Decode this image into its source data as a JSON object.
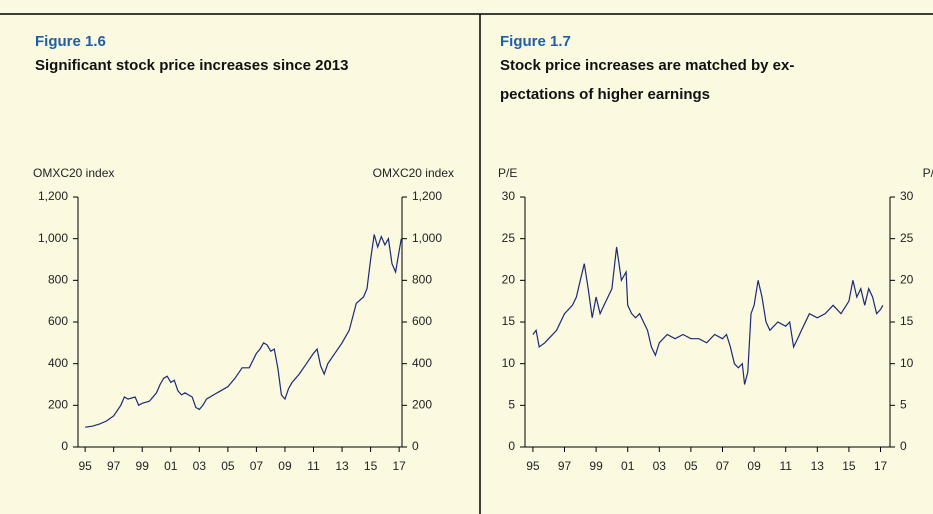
{
  "chart_data": [
    {
      "type": "line",
      "figure_label": "Figure 1.6",
      "title": [
        "Significant stock price increases since 2013"
      ],
      "ylabel": "OMXC20 index",
      "y2label": "OMXC20 index",
      "color": "#1a2a78",
      "xlim": [
        1994.5,
        2017.2
      ],
      "ylim": [
        0,
        1200
      ],
      "xticks": [
        {
          "value": 1995,
          "label": "95"
        },
        {
          "value": 1997,
          "label": "97"
        },
        {
          "value": 1999,
          "label": "99"
        },
        {
          "value": 2001,
          "label": "01"
        },
        {
          "value": 2003,
          "label": "03"
        },
        {
          "value": 2005,
          "label": "05"
        },
        {
          "value": 2007,
          "label": "07"
        },
        {
          "value": 2009,
          "label": "09"
        },
        {
          "value": 2011,
          "label": "11"
        },
        {
          "value": 2013,
          "label": "13"
        },
        {
          "value": 2015,
          "label": "15"
        },
        {
          "value": 2017,
          "label": "17"
        }
      ],
      "yticks": [
        0,
        200,
        400,
        600,
        800,
        {
          "value": 1000,
          "label": "1,000"
        },
        {
          "value": 1200,
          "label": "1,200"
        }
      ],
      "x": [
        1995.0,
        1995.5,
        1996.0,
        1996.5,
        1997.0,
        1997.5,
        1997.75,
        1998.0,
        1998.5,
        1998.75,
        1999.0,
        1999.5,
        2000.0,
        2000.25,
        2000.5,
        2000.75,
        2001.0,
        2001.25,
        2001.5,
        2001.75,
        2002.0,
        2002.5,
        2002.75,
        2003.0,
        2003.25,
        2003.5,
        2004.0,
        2004.5,
        2005.0,
        2005.5,
        2006.0,
        2006.5,
        2007.0,
        2007.25,
        2007.5,
        2007.75,
        2008.0,
        2008.25,
        2008.5,
        2008.75,
        2009.0,
        2009.25,
        2009.5,
        2010.0,
        2010.5,
        2011.0,
        2011.25,
        2011.5,
        2011.75,
        2012.0,
        2012.5,
        2013.0,
        2013.5,
        2014.0,
        2014.5,
        2014.75,
        2015.0,
        2015.25,
        2015.5,
        2015.75,
        2016.0,
        2016.25,
        2016.5,
        2016.75,
        2017.0,
        2017.15
      ],
      "values": [
        95,
        100,
        110,
        125,
        150,
        200,
        240,
        230,
        240,
        200,
        210,
        220,
        260,
        300,
        330,
        340,
        310,
        320,
        270,
        250,
        260,
        240,
        190,
        180,
        200,
        230,
        250,
        270,
        290,
        330,
        380,
        380,
        450,
        470,
        500,
        490,
        460,
        470,
        380,
        250,
        230,
        280,
        310,
        350,
        400,
        450,
        470,
        390,
        350,
        400,
        450,
        500,
        560,
        690,
        720,
        760,
        900,
        1020,
        960,
        1010,
        970,
        1000,
        880,
        840,
        940,
        1000
      ]
    },
    {
      "type": "line",
      "figure_label": "Figure 1.7",
      "title": [
        "Stock price increases are matched by ex-",
        "pectations of higher earnings"
      ],
      "ylabel": "P/E",
      "y2label": "P/E",
      "color": "#1a2a78",
      "xlim": [
        1994.5,
        2017.6
      ],
      "ylim": [
        0,
        30
      ],
      "xticks": [
        {
          "value": 1995,
          "label": "95"
        },
        {
          "value": 1997,
          "label": "97"
        },
        {
          "value": 1999,
          "label": "99"
        },
        {
          "value": 2001,
          "label": "01"
        },
        {
          "value": 2003,
          "label": "03"
        },
        {
          "value": 2005,
          "label": "05"
        },
        {
          "value": 2007,
          "label": "07"
        },
        {
          "value": 2009,
          "label": "09"
        },
        {
          "value": 2011,
          "label": "11"
        },
        {
          "value": 2013,
          "label": "13"
        },
        {
          "value": 2015,
          "label": "15"
        },
        {
          "value": 2017,
          "label": "17"
        }
      ],
      "yticks": [
        0,
        5,
        10,
        15,
        20,
        25,
        30
      ],
      "x": [
        1995.0,
        1995.2,
        1995.4,
        1995.75,
        1996.0,
        1996.5,
        1997.0,
        1997.5,
        1997.75,
        1998.0,
        1998.25,
        1998.5,
        1998.75,
        1999.0,
        1999.25,
        1999.5,
        2000.0,
        2000.3,
        2000.6,
        2000.9,
        2001.0,
        2001.25,
        2001.5,
        2001.75,
        2002.0,
        2002.25,
        2002.5,
        2002.75,
        2003.0,
        2003.5,
        2004.0,
        2004.5,
        2005.0,
        2005.5,
        2006.0,
        2006.5,
        2007.0,
        2007.25,
        2007.5,
        2007.75,
        2008.0,
        2008.25,
        2008.4,
        2008.6,
        2008.8,
        2009.0,
        2009.25,
        2009.5,
        2009.75,
        2010.0,
        2010.5,
        2011.0,
        2011.25,
        2011.5,
        2011.75,
        2012.0,
        2012.5,
        2013.0,
        2013.5,
        2014.0,
        2014.5,
        2015.0,
        2015.25,
        2015.5,
        2015.75,
        2016.0,
        2016.25,
        2016.5,
        2016.75,
        2017.0,
        2017.15
      ],
      "values": [
        13.5,
        14,
        12,
        12.5,
        13,
        14,
        16,
        17,
        18,
        20,
        22,
        19,
        15.5,
        18,
        16,
        17,
        19,
        24,
        20,
        21,
        17,
        16,
        15.5,
        16,
        15,
        14,
        12,
        11,
        12.5,
        13.5,
        13,
        13.5,
        13,
        13,
        12.5,
        13.5,
        13,
        13.5,
        12,
        10,
        9.5,
        10,
        7.5,
        9,
        16,
        17,
        20,
        18,
        15,
        14,
        15,
        14.5,
        15,
        12,
        13,
        14,
        16,
        15.5,
        16,
        17,
        16,
        17.5,
        20,
        18,
        19,
        17,
        19,
        18,
        16,
        16.5,
        17
      ]
    }
  ]
}
